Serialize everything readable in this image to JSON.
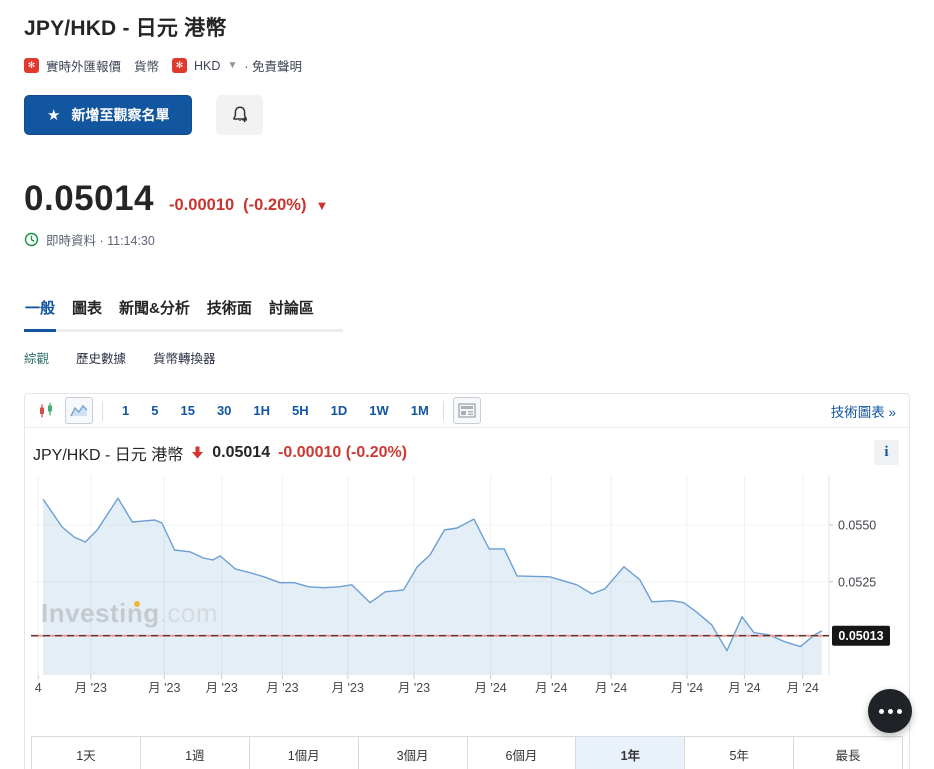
{
  "page": {
    "title": "JPY/HKD - 日元 港幣",
    "breadcrumb": {
      "flag_icon": "hk-flag-icon",
      "link1": "實時外匯報價",
      "link2": "貨幣",
      "currency": "HKD",
      "disclaimer": "· 免責聲明"
    },
    "actions": {
      "watchlist_label": "新增至觀察名單",
      "star_icon": "★"
    },
    "quote": {
      "price": "0.05014",
      "change": "-0.00010",
      "change_pct": "(-0.20%)",
      "direction_icon": "▼",
      "status": "即時資料 · 11:14:30"
    },
    "tabs": [
      {
        "label": "一般",
        "active": true
      },
      {
        "label": "圖表",
        "active": false
      },
      {
        "label": "新聞&分析",
        "active": false
      },
      {
        "label": "技術面",
        "active": false
      },
      {
        "label": "討論區",
        "active": false
      }
    ],
    "subtabs": [
      {
        "label": "綜觀",
        "active": true
      },
      {
        "label": "歷史數據",
        "active": false
      },
      {
        "label": "貨幣轉換器",
        "active": false
      }
    ]
  },
  "chart_panel": {
    "toolbar": {
      "intervals": [
        {
          "label": "1",
          "active": false
        },
        {
          "label": "5",
          "active": false
        },
        {
          "label": "15",
          "active": false
        },
        {
          "label": "30",
          "active": false
        },
        {
          "label": "1H",
          "active": false
        },
        {
          "label": "5H",
          "active": false
        },
        {
          "label": "1D",
          "active": false
        },
        {
          "label": "1W",
          "active": true
        },
        {
          "label": "1M",
          "active": false
        }
      ],
      "link": "技術圖表 »"
    },
    "header": {
      "symbol": "JPY/HKD - 日元 港幣",
      "price": "0.05014",
      "change": "-0.00010 (-0.20%)"
    },
    "watermark": {
      "bold": "Investing",
      "light": ".com"
    },
    "ranges": [
      {
        "label": "1天",
        "active": false
      },
      {
        "label": "1週",
        "active": false
      },
      {
        "label": "1個月",
        "active": false
      },
      {
        "label": "3個月",
        "active": false
      },
      {
        "label": "6個月",
        "active": false
      },
      {
        "label": "1年",
        "active": true
      },
      {
        "label": "5年",
        "active": false
      },
      {
        "label": "最長",
        "active": false
      }
    ]
  },
  "chart_data": {
    "type": "area",
    "title": "JPY/HKD - 日元 港幣",
    "period": "1年",
    "xlabel": "",
    "ylabel": "",
    "ylim": [
      0.0484,
      0.0572
    ],
    "grid": true,
    "y_ticks": [
      {
        "label": "0.0550",
        "v": 0.055
      },
      {
        "label": "0.0525",
        "v": 0.0525
      }
    ],
    "x_ticks": [
      {
        "label": "4",
        "f": 0.009
      },
      {
        "label": "月 '23",
        "f": 0.075
      },
      {
        "label": "月 '23",
        "f": 0.167
      },
      {
        "label": "月 '23",
        "f": 0.239
      },
      {
        "label": "月 '23",
        "f": 0.315
      },
      {
        "label": "月 '23",
        "f": 0.397
      },
      {
        "label": "月 '23",
        "f": 0.48
      },
      {
        "label": "月 '24",
        "f": 0.576
      },
      {
        "label": "月 '24",
        "f": 0.652
      },
      {
        "label": "月 '24",
        "f": 0.727
      },
      {
        "label": "月 '24",
        "f": 0.822
      },
      {
        "label": "月 '24",
        "f": 0.894
      },
      {
        "label": "月 '24",
        "f": 0.967
      }
    ],
    "last": {
      "v": 0.05013,
      "label": "0.05013"
    },
    "series": [
      [
        0.015,
        0.05614
      ],
      [
        0.039,
        0.05491
      ],
      [
        0.054,
        0.05447
      ],
      [
        0.068,
        0.05425
      ],
      [
        0.083,
        0.05478
      ],
      [
        0.109,
        0.05618
      ],
      [
        0.127,
        0.05513
      ],
      [
        0.142,
        0.05518
      ],
      [
        0.155,
        0.05522
      ],
      [
        0.164,
        0.05509
      ],
      [
        0.18,
        0.0539
      ],
      [
        0.199,
        0.05382
      ],
      [
        0.216,
        0.05355
      ],
      [
        0.228,
        0.05346
      ],
      [
        0.237,
        0.05364
      ],
      [
        0.256,
        0.05307
      ],
      [
        0.276,
        0.05289
      ],
      [
        0.292,
        0.05272
      ],
      [
        0.312,
        0.05246
      ],
      [
        0.33,
        0.05246
      ],
      [
        0.348,
        0.05228
      ],
      [
        0.368,
        0.05224
      ],
      [
        0.386,
        0.05228
      ],
      [
        0.402,
        0.05237
      ],
      [
        0.425,
        0.05158
      ],
      [
        0.444,
        0.05206
      ],
      [
        0.459,
        0.05211
      ],
      [
        0.467,
        0.05215
      ],
      [
        0.484,
        0.05316
      ],
      [
        0.5,
        0.05368
      ],
      [
        0.518,
        0.05478
      ],
      [
        0.534,
        0.05487
      ],
      [
        0.555,
        0.05526
      ],
      [
        0.574,
        0.05395
      ],
      [
        0.593,
        0.05395
      ],
      [
        0.609,
        0.05276
      ],
      [
        0.65,
        0.05272
      ],
      [
        0.684,
        0.05237
      ],
      [
        0.703,
        0.05197
      ],
      [
        0.719,
        0.05219
      ],
      [
        0.743,
        0.05316
      ],
      [
        0.763,
        0.05259
      ],
      [
        0.778,
        0.05162
      ],
      [
        0.803,
        0.05167
      ],
      [
        0.818,
        0.05158
      ],
      [
        0.835,
        0.05114
      ],
      [
        0.853,
        0.05061
      ],
      [
        0.872,
        0.04947
      ],
      [
        0.891,
        0.05096
      ],
      [
        0.906,
        0.05026
      ],
      [
        0.925,
        0.05017
      ],
      [
        0.944,
        0.04987
      ],
      [
        0.964,
        0.04965
      ],
      [
        0.982,
        0.05017
      ],
      [
        0.991,
        0.05034
      ]
    ]
  },
  "colors": {
    "accent_blue": "#1256a0",
    "negative_red": "#c9342e",
    "line_blue": "#6b9fd4",
    "fill_blue": "rgba(107,159,212,0.18)",
    "last_line_pink": "#ef9a91",
    "tag_black": "#161616",
    "grid": "#eff1f3"
  }
}
